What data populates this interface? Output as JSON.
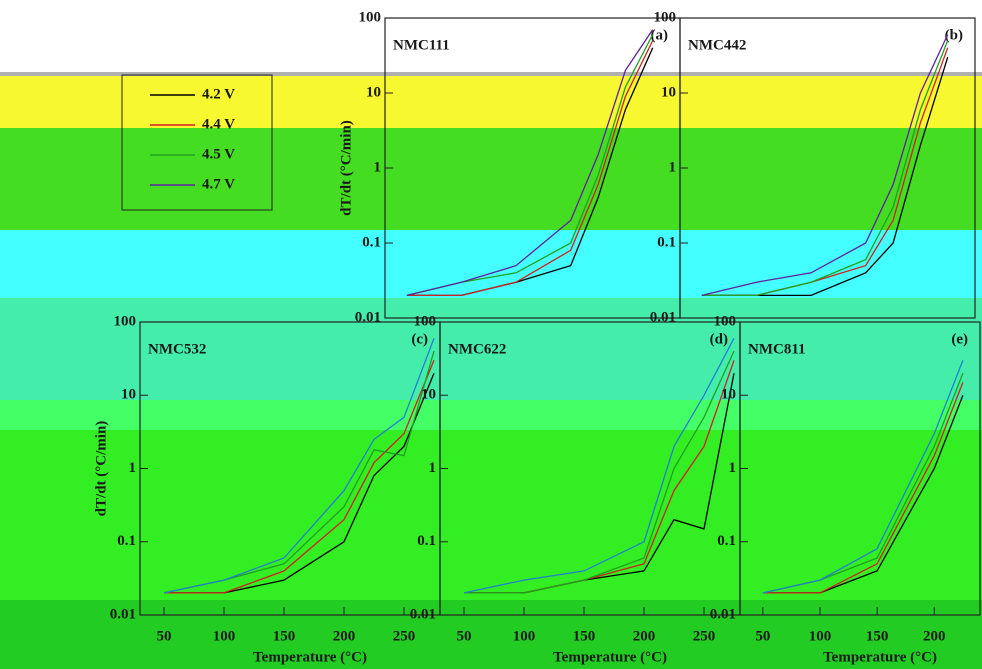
{
  "chart_data": [
    {
      "type": "line",
      "panel_label": "(a)",
      "title": "NMC111",
      "y_label": "dT/dt (°C/min)",
      "log_y": true,
      "legend": "left",
      "x": [
        50,
        100,
        150,
        200,
        225,
        250,
        275
      ],
      "xlim": [
        30,
        300
      ],
      "ylim": [
        0.01,
        100
      ],
      "yticks": [
        0.01,
        0.1,
        1,
        10,
        100
      ],
      "series": [
        {
          "name": "4.2 V",
          "color": "#000000",
          "values": [
            0.02,
            0.02,
            0.03,
            0.05,
            0.4,
            6,
            40
          ]
        },
        {
          "name": "4.4 V",
          "color": "#d02020",
          "values": [
            0.02,
            0.02,
            0.03,
            0.08,
            0.6,
            9,
            50
          ]
        },
        {
          "name": "4.5 V",
          "color": "#20a020",
          "values": [
            0.02,
            0.03,
            0.04,
            0.1,
            0.8,
            12,
            60
          ]
        },
        {
          "name": "4.7 V",
          "color": "#6020a0",
          "values": [
            0.02,
            0.03,
            0.05,
            0.2,
            1.5,
            20,
            70
          ]
        }
      ]
    },
    {
      "type": "line",
      "panel_label": "(b)",
      "title": "NMC442",
      "log_y": true,
      "x": [
        50,
        100,
        150,
        200,
        225,
        250,
        275
      ],
      "xlim": [
        30,
        300
      ],
      "ylim": [
        0.01,
        100
      ],
      "yticks": [
        0.01,
        0.1,
        1,
        10,
        100
      ],
      "series": [
        {
          "name": "4.2 V",
          "color": "#000000",
          "values": [
            0.02,
            0.02,
            0.02,
            0.04,
            0.1,
            2,
            30
          ]
        },
        {
          "name": "4.4 V",
          "color": "#d02020",
          "values": [
            0.02,
            0.02,
            0.03,
            0.05,
            0.2,
            4,
            40
          ]
        },
        {
          "name": "4.5 V",
          "color": "#20a020",
          "values": [
            0.02,
            0.02,
            0.03,
            0.06,
            0.3,
            6,
            50
          ]
        },
        {
          "name": "4.7 V",
          "color": "#6020a0",
          "values": [
            0.02,
            0.03,
            0.04,
            0.1,
            0.6,
            10,
            60
          ]
        }
      ]
    },
    {
      "type": "line",
      "panel_label": "(c)",
      "title": "NMC532",
      "y_label": "dT/dt (°C/min)",
      "x_label": "Temperature (°C)",
      "log_y": true,
      "x": [
        50,
        100,
        150,
        200,
        225,
        250,
        275
      ],
      "xlim": [
        30,
        280
      ],
      "ylim": [
        0.01,
        100
      ],
      "yticks": [
        0.01,
        0.1,
        1,
        10,
        100
      ],
      "xticks": [
        50,
        100,
        150,
        200,
        250
      ],
      "series": [
        {
          "name": "4.2 V",
          "color": "#000000",
          "values": [
            0.02,
            0.02,
            0.03,
            0.1,
            0.8,
            2,
            20
          ]
        },
        {
          "name": "4.4 V",
          "color": "#d02020",
          "values": [
            0.02,
            0.02,
            0.04,
            0.2,
            1.2,
            3,
            30
          ]
        },
        {
          "name": "4.5 V",
          "color": "#20a020",
          "values": [
            0.02,
            0.03,
            0.05,
            0.3,
            1.8,
            1.5,
            40
          ]
        },
        {
          "name": "4.7 V",
          "color": "#2080d0",
          "values": [
            0.02,
            0.03,
            0.06,
            0.5,
            2.5,
            5,
            60
          ]
        }
      ]
    },
    {
      "type": "line",
      "panel_label": "(d)",
      "title": "NMC622",
      "x_label": "Temperature (°C)",
      "log_y": true,
      "x": [
        50,
        100,
        150,
        200,
        225,
        250,
        275
      ],
      "xlim": [
        30,
        280
      ],
      "ylim": [
        0.01,
        100
      ],
      "yticks": [
        0.01,
        0.1,
        1,
        10,
        100
      ],
      "xticks": [
        50,
        100,
        150,
        200,
        250
      ],
      "series": [
        {
          "name": "4.2 V",
          "color": "#000000",
          "values": [
            0.02,
            0.02,
            0.03,
            0.04,
            0.2,
            0.15,
            20
          ]
        },
        {
          "name": "4.4 V",
          "color": "#d02020",
          "values": [
            0.02,
            0.02,
            0.03,
            0.05,
            0.5,
            2,
            30
          ]
        },
        {
          "name": "4.5 V",
          "color": "#20a020",
          "values": [
            0.02,
            0.02,
            0.03,
            0.06,
            1,
            5,
            40
          ]
        },
        {
          "name": "4.7 V",
          "color": "#2080d0",
          "values": [
            0.02,
            0.03,
            0.04,
            0.1,
            2,
            10,
            60
          ]
        }
      ]
    },
    {
      "type": "line",
      "panel_label": "(e)",
      "title": "NMC811",
      "x_label": "Temperature (°C)",
      "log_y": true,
      "x": [
        50,
        100,
        150,
        200,
        225
      ],
      "xlim": [
        30,
        240
      ],
      "ylim": [
        0.01,
        100
      ],
      "yticks": [
        0.01,
        0.1,
        1,
        10,
        100
      ],
      "xticks": [
        50,
        100,
        150,
        200
      ],
      "series": [
        {
          "name": "4.2 V",
          "color": "#000000",
          "values": [
            0.02,
            0.02,
            0.04,
            1,
            10
          ]
        },
        {
          "name": "4.4 V",
          "color": "#d02020",
          "values": [
            0.02,
            0.02,
            0.05,
            1.5,
            15
          ]
        },
        {
          "name": "4.5 V",
          "color": "#20a020",
          "values": [
            0.02,
            0.03,
            0.06,
            2,
            20
          ]
        },
        {
          "name": "4.7 V",
          "color": "#2080d0",
          "values": [
            0.02,
            0.03,
            0.08,
            3,
            30
          ]
        }
      ]
    }
  ]
}
